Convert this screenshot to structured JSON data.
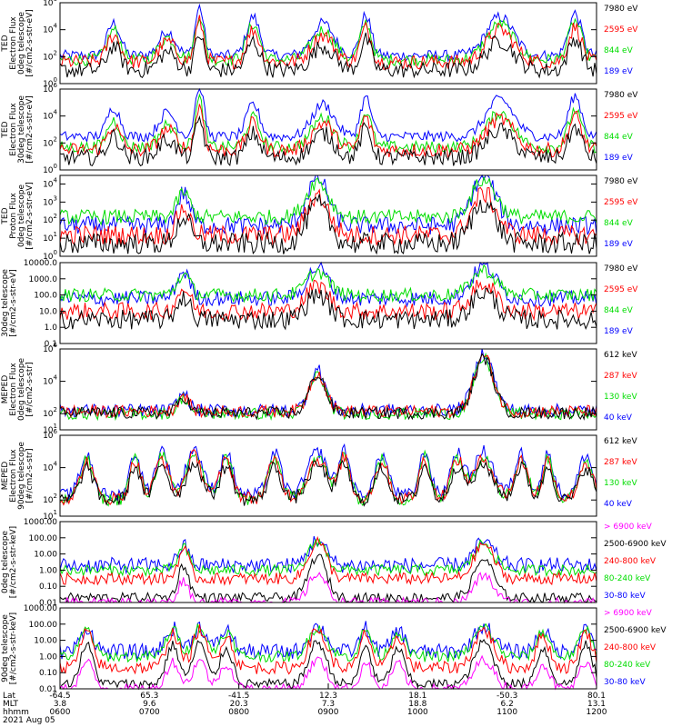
{
  "chart_data": [
    {
      "type": "line",
      "ylabel": [
        "TED",
        "Electron Flux",
        "0deg telescope",
        "[#/cm2-s-str-eV]"
      ],
      "yscale": "log",
      "ylim": [
        1,
        1000000
      ],
      "yticks": [
        {
          "v": 1,
          "label": "10",
          "exp": "0"
        },
        {
          "v": 100,
          "label": "10",
          "exp": "2"
        },
        {
          "v": 10000,
          "label": "10",
          "exp": "4"
        },
        {
          "v": 1000000,
          "label": "10",
          "exp": "6"
        }
      ],
      "series": [
        {
          "name": "7980 eV",
          "color": "#000000",
          "base": 10,
          "noise": 3,
          "amp": 0.9
        },
        {
          "name": "2595 eV",
          "color": "#ff0000",
          "base": 40,
          "noise": 2.5,
          "amp": 1.0
        },
        {
          "name": "844 eV",
          "color": "#00dd00",
          "base": 60,
          "noise": 1.8,
          "amp": 1.1
        },
        {
          "name": "189 eV",
          "color": "#0000ff",
          "base": 120,
          "noise": 1.6,
          "amp": 1.2
        }
      ],
      "peaks": [
        [
          0.1,
          0.012,
          2.0
        ],
        [
          0.2,
          0.015,
          1.5
        ],
        [
          0.26,
          0.008,
          3.0
        ],
        [
          0.36,
          0.012,
          2.4
        ],
        [
          0.49,
          0.02,
          2.0
        ],
        [
          0.57,
          0.01,
          2.5
        ],
        [
          0.82,
          0.025,
          2.4
        ],
        [
          0.96,
          0.012,
          2.6
        ]
      ]
    },
    {
      "type": "line",
      "ylabel": [
        "TED",
        "Electron Flux",
        "30deg telescope",
        "[#/cm2-s-str-eV]"
      ],
      "yscale": "log",
      "ylim": [
        1,
        1000000
      ],
      "yticks": [
        {
          "v": 1,
          "label": "10",
          "exp": "0"
        },
        {
          "v": 100,
          "label": "10",
          "exp": "2"
        },
        {
          "v": 10000,
          "label": "10",
          "exp": "4"
        },
        {
          "v": 1000000,
          "label": "10",
          "exp": "6"
        }
      ],
      "series": [
        {
          "name": "7980 eV",
          "color": "#000000",
          "base": 8,
          "noise": 3,
          "amp": 0.9
        },
        {
          "name": "2595 eV",
          "color": "#ff0000",
          "base": 30,
          "noise": 2.5,
          "amp": 1.0
        },
        {
          "name": "844 eV",
          "color": "#00dd00",
          "base": 50,
          "noise": 1.8,
          "amp": 1.1
        },
        {
          "name": "189 eV",
          "color": "#0000ff",
          "base": 300,
          "noise": 1.5,
          "amp": 1.2
        }
      ],
      "peaks": [
        [
          0.1,
          0.012,
          1.8
        ],
        [
          0.2,
          0.015,
          1.5
        ],
        [
          0.26,
          0.008,
          3.2
        ],
        [
          0.36,
          0.012,
          2.0
        ],
        [
          0.49,
          0.02,
          2.0
        ],
        [
          0.57,
          0.01,
          2.4
        ],
        [
          0.82,
          0.025,
          2.3
        ],
        [
          0.96,
          0.012,
          2.5
        ]
      ]
    },
    {
      "type": "line",
      "ylabel": [
        "TED",
        "Proton Flux",
        "0deg telescope",
        "[#/cm2-s-str-eV]"
      ],
      "yscale": "log",
      "ylim": [
        1,
        30000
      ],
      "yticks": [
        {
          "v": 1,
          "label": "10",
          "exp": "0"
        },
        {
          "v": 10,
          "label": "10",
          "exp": "1"
        },
        {
          "v": 100,
          "label": "10",
          "exp": "2"
        },
        {
          "v": 1000,
          "label": "10",
          "exp": "3"
        },
        {
          "v": 10000,
          "label": "10",
          "exp": "4"
        }
      ],
      "series": [
        {
          "name": "7980 eV",
          "color": "#000000",
          "base": 5,
          "noise": 3,
          "amp": 1.0
        },
        {
          "name": "2595 eV",
          "color": "#ff0000",
          "base": 15,
          "noise": 2.5,
          "amp": 1.0
        },
        {
          "name": "844 eV",
          "color": "#00dd00",
          "base": 150,
          "noise": 1.6,
          "amp": 0.9
        },
        {
          "name": "189 eV",
          "color": "#0000ff",
          "base": 50,
          "noise": 2.2,
          "amp": 1.2
        }
      ],
      "peaks": [
        [
          0.23,
          0.012,
          1.5
        ],
        [
          0.48,
          0.02,
          2.2
        ],
        [
          0.79,
          0.022,
          2.3
        ]
      ]
    },
    {
      "type": "line",
      "ylabel": [
        "30deg telescope",
        "[#/cm2-s-str-eV]"
      ],
      "yscale": "log",
      "ylim": [
        0.1,
        10000
      ],
      "yticks": [
        {
          "v": 0.1,
          "label": "0.1",
          "exp": ""
        },
        {
          "v": 1,
          "label": "1.0",
          "exp": ""
        },
        {
          "v": 10,
          "label": "10.0",
          "exp": ""
        },
        {
          "v": 100,
          "label": "100.0",
          "exp": ""
        },
        {
          "v": 1000,
          "label": "1000.0",
          "exp": ""
        },
        {
          "v": 10000,
          "label": "10000.0",
          "exp": ""
        }
      ],
      "series": [
        {
          "name": "7980 eV",
          "color": "#000000",
          "base": 3,
          "noise": 3,
          "amp": 1.0
        },
        {
          "name": "2595 eV",
          "color": "#ff0000",
          "base": 10,
          "noise": 2.5,
          "amp": 1.0
        },
        {
          "name": "844 eV",
          "color": "#00dd00",
          "base": 100,
          "noise": 1.6,
          "amp": 0.9
        },
        {
          "name": "189 eV",
          "color": "#0000ff",
          "base": 60,
          "noise": 2.0,
          "amp": 1.2
        }
      ],
      "peaks": [
        [
          0.23,
          0.012,
          1.4
        ],
        [
          0.48,
          0.02,
          1.6
        ],
        [
          0.79,
          0.022,
          1.7
        ]
      ]
    },
    {
      "type": "line",
      "ylabel": [
        "MEPED",
        "Electron Flux",
        "0deg telescope",
        "[#/cm2-s-str]"
      ],
      "yscale": "log",
      "ylim": [
        10,
        1000000
      ],
      "yticks": [
        {
          "v": 10,
          "label": "10",
          "exp": "1"
        },
        {
          "v": 100,
          "label": "10",
          "exp": "2"
        },
        {
          "v": 10000,
          "label": "10",
          "exp": "4"
        },
        {
          "v": 1000000,
          "label": "10",
          "exp": "6"
        }
      ],
      "series": [
        {
          "name": "612 keV",
          "color": "#000000",
          "base": 110,
          "noise": 1.4,
          "amp": 1.0
        },
        {
          "name": "287 keV",
          "color": "#ff0000",
          "base": 140,
          "noise": 1.4,
          "amp": 1.0
        },
        {
          "name": "130 keV",
          "color": "#00dd00",
          "base": 100,
          "noise": 1.3,
          "amp": 1.0
        },
        {
          "name": "40 keV",
          "color": "#0000ff",
          "base": 160,
          "noise": 1.5,
          "amp": 1.05
        }
      ],
      "peaks": [
        [
          0.23,
          0.01,
          1.0
        ],
        [
          0.48,
          0.015,
          2.4
        ],
        [
          0.79,
          0.018,
          3.4
        ]
      ]
    },
    {
      "type": "line",
      "ylabel": [
        "MEPED",
        "Electron Flux",
        "90deg telescope",
        "[#/cm2-s-str]"
      ],
      "yscale": "log",
      "ylim": [
        10,
        1000000
      ],
      "yticks": [
        {
          "v": 10,
          "label": "10",
          "exp": "1"
        },
        {
          "v": 100,
          "label": "10",
          "exp": "2"
        },
        {
          "v": 10000,
          "label": "10",
          "exp": "4"
        },
        {
          "v": 1000000,
          "label": "10",
          "exp": "6"
        }
      ],
      "series": [
        {
          "name": "612 keV",
          "color": "#000000",
          "base": 100,
          "noise": 1.6,
          "amp": 0.8
        },
        {
          "name": "287 keV",
          "color": "#ff0000",
          "base": 130,
          "noise": 1.6,
          "amp": 0.9
        },
        {
          "name": "130 keV",
          "color": "#00dd00",
          "base": 100,
          "noise": 1.4,
          "amp": 1.0
        },
        {
          "name": "40 keV",
          "color": "#0000ff",
          "base": 200,
          "noise": 1.5,
          "amp": 1.0
        }
      ],
      "peaks": [
        [
          0.05,
          0.012,
          2.5
        ],
        [
          0.14,
          0.01,
          2.6
        ],
        [
          0.19,
          0.012,
          2.8
        ],
        [
          0.25,
          0.015,
          2.9
        ],
        [
          0.31,
          0.012,
          2.6
        ],
        [
          0.4,
          0.012,
          2.6
        ],
        [
          0.48,
          0.018,
          2.7
        ],
        [
          0.53,
          0.01,
          2.8
        ],
        [
          0.6,
          0.012,
          2.5
        ],
        [
          0.68,
          0.01,
          2.7
        ],
        [
          0.74,
          0.012,
          2.6
        ],
        [
          0.79,
          0.018,
          2.7
        ],
        [
          0.86,
          0.012,
          2.6
        ],
        [
          0.91,
          0.01,
          2.6
        ],
        [
          0.98,
          0.012,
          2.5
        ]
      ]
    },
    {
      "type": "line",
      "ylabel": [
        "0deg telescope",
        "[#/cm2-s-str-keV]"
      ],
      "yscale": "log",
      "ylim": [
        0.01,
        1000
      ],
      "yticks": [
        {
          "v": 0.01,
          "label": "0.01",
          "exp": ""
        },
        {
          "v": 0.1,
          "label": "0.10",
          "exp": ""
        },
        {
          "v": 1,
          "label": "1.00",
          "exp": ""
        },
        {
          "v": 10,
          "label": "10.00",
          "exp": ""
        },
        {
          "v": 100,
          "label": "100.00",
          "exp": ""
        },
        {
          "v": 1000,
          "label": "1000.00",
          "exp": ""
        }
      ],
      "series": [
        {
          "name": "> 6900 keV",
          "color": "#ff00ff",
          "base": 0.01,
          "noise": 1.0,
          "amp": 1.4
        },
        {
          "name": "2500-6900 keV",
          "color": "#000000",
          "base": 0.02,
          "noise": 1.0,
          "amp": 2.0
        },
        {
          "name": "240-800 keV",
          "color": "#ff0000",
          "base": 0.3,
          "noise": 1.3,
          "amp": 1.8
        },
        {
          "name": "80-240 keV",
          "color": "#00dd00",
          "base": 1.0,
          "noise": 1.2,
          "amp": 1.4
        },
        {
          "name": "30-80 keV",
          "color": "#0000ff",
          "base": 2.0,
          "noise": 2.0,
          "amp": 1.2
        }
      ],
      "peaks": [
        [
          0.23,
          0.01,
          1.0
        ],
        [
          0.48,
          0.016,
          1.3
        ],
        [
          0.79,
          0.018,
          1.2
        ]
      ]
    },
    {
      "type": "line",
      "ylabel": [
        "90deg telescope",
        "[#/cm2-s-str-keV]"
      ],
      "yscale": "log",
      "ylim": [
        0.01,
        1000
      ],
      "yticks": [
        {
          "v": 0.01,
          "label": "0.01",
          "exp": ""
        },
        {
          "v": 0.1,
          "label": "0.10",
          "exp": ""
        },
        {
          "v": 1,
          "label": "1.00",
          "exp": ""
        },
        {
          "v": 10,
          "label": "10.00",
          "exp": ""
        },
        {
          "v": 100,
          "label": "100.00",
          "exp": ""
        },
        {
          "v": 1000,
          "label": "1000.00",
          "exp": ""
        }
      ],
      "series": [
        {
          "name": "> 6900 keV",
          "color": "#ff00ff",
          "base": 0.01,
          "noise": 1.0,
          "amp": 1.4
        },
        {
          "name": "2500-6900 keV",
          "color": "#000000",
          "base": 0.02,
          "noise": 1.0,
          "amp": 2.0
        },
        {
          "name": "240-800 keV",
          "color": "#ff0000",
          "base": 0.2,
          "noise": 1.5,
          "amp": 1.8
        },
        {
          "name": "80-240 keV",
          "color": "#00dd00",
          "base": 1.0,
          "noise": 1.2,
          "amp": 1.4
        },
        {
          "name": "30-80 keV",
          "color": "#0000ff",
          "base": 2.0,
          "noise": 2.0,
          "amp": 1.2
        }
      ],
      "peaks": [
        [
          0.05,
          0.012,
          1.2
        ],
        [
          0.21,
          0.012,
          1.2
        ],
        [
          0.26,
          0.012,
          1.3
        ],
        [
          0.31,
          0.012,
          1.1
        ],
        [
          0.48,
          0.016,
          1.3
        ],
        [
          0.57,
          0.01,
          1.2
        ],
        [
          0.63,
          0.012,
          1.1
        ],
        [
          0.79,
          0.018,
          1.3
        ],
        [
          0.9,
          0.012,
          1.1
        ],
        [
          0.98,
          0.012,
          1.2
        ]
      ]
    }
  ],
  "x_axis": {
    "rows": [
      {
        "label": "Lat",
        "values": [
          "-64.5",
          "65.3",
          "-41.5",
          "12.3",
          "18.1",
          "-50.3",
          "80.1"
        ]
      },
      {
        "label": "MLT",
        "values": [
          "3.8",
          "9.6",
          "20.3",
          "7.3",
          "18.8",
          "6.2",
          "13.1"
        ]
      },
      {
        "label": "hhmm",
        "values": [
          "0600",
          "0700",
          "0800",
          "0900",
          "1000",
          "1100",
          "1200"
        ]
      }
    ],
    "date": "2021 Aug 05"
  }
}
